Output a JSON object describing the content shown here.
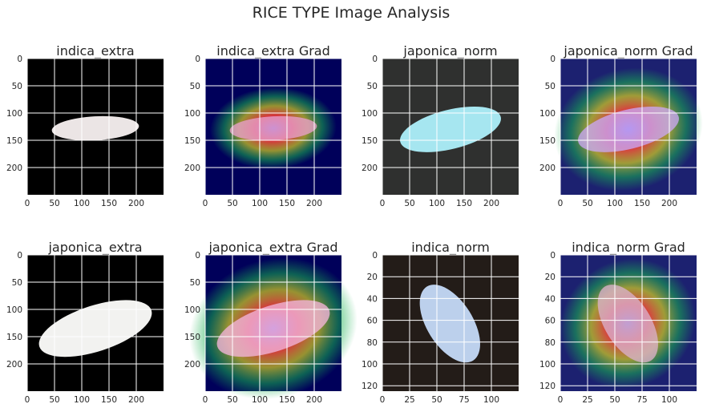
{
  "figure": {
    "title": "RICE TYPE Image Analysis"
  },
  "chart_data": [
    {
      "type": "image",
      "title": "indica_extra",
      "xlim": [
        0,
        250
      ],
      "ylim": [
        250,
        0
      ],
      "xticks": [
        0,
        50,
        100,
        150,
        200
      ],
      "yticks": [
        0,
        50,
        100,
        150,
        200
      ],
      "grid": true,
      "image": {
        "background": "#000000",
        "grain": "#ebe5e5",
        "heatmap": false
      }
    },
    {
      "type": "image",
      "title": "indica_extra Grad",
      "xlim": [
        0,
        250
      ],
      "ylim": [
        250,
        0
      ],
      "xticks": [
        0,
        50,
        100,
        150,
        200
      ],
      "yticks": [
        0,
        50,
        100,
        150,
        200
      ],
      "grid": true,
      "image": {
        "background": "#00005a",
        "grain": "#e6a0c8",
        "heatmap": true
      }
    },
    {
      "type": "image",
      "title": "japonica_norm",
      "xlim": [
        0,
        250
      ],
      "ylim": [
        250,
        0
      ],
      "xticks": [
        0,
        50,
        100,
        150,
        200
      ],
      "yticks": [
        0,
        50,
        100,
        150,
        200
      ],
      "grid": true,
      "image": {
        "background": "#2f302f",
        "grain": "#a6e6f0",
        "heatmap": false
      }
    },
    {
      "type": "image",
      "title": "japonica_norm Grad",
      "xlim": [
        0,
        250
      ],
      "ylim": [
        250,
        0
      ],
      "xticks": [
        0,
        50,
        100,
        150,
        200
      ],
      "yticks": [
        0,
        50,
        100,
        150,
        200
      ],
      "grid": true,
      "image": {
        "background": "#1c2170",
        "grain": "#c8a8f0",
        "heatmap": true
      }
    },
    {
      "type": "image",
      "title": "japonica_extra",
      "xlim": [
        0,
        250
      ],
      "ylim": [
        250,
        0
      ],
      "xticks": [
        0,
        50,
        100,
        150,
        200
      ],
      "yticks": [
        0,
        50,
        100,
        150,
        200
      ],
      "grid": true,
      "image": {
        "background": "#000000",
        "grain": "#f2f2f0",
        "heatmap": false
      }
    },
    {
      "type": "image",
      "title": "japonica_extra Grad",
      "xlim": [
        0,
        250
      ],
      "ylim": [
        250,
        0
      ],
      "xticks": [
        0,
        50,
        100,
        150,
        200
      ],
      "yticks": [
        0,
        50,
        100,
        150,
        200
      ],
      "grid": true,
      "image": {
        "background": "#00005a",
        "grain": "#f0b4d8",
        "heatmap": true
      }
    },
    {
      "type": "image",
      "title": "indica_norm",
      "xlim": [
        0,
        125
      ],
      "ylim": [
        125,
        0
      ],
      "xticks": [
        0,
        25,
        50,
        75,
        100
      ],
      "yticks": [
        0,
        20,
        40,
        60,
        80,
        100,
        120
      ],
      "grid": true,
      "image": {
        "background": "#231c18",
        "grain": "#bcd0ec",
        "heatmap": false
      }
    },
    {
      "type": "image",
      "title": "indica_norm Grad",
      "xlim": [
        0,
        125
      ],
      "ylim": [
        125,
        0
      ],
      "xticks": [
        0,
        25,
        50,
        75,
        100
      ],
      "yticks": [
        0,
        20,
        40,
        60,
        80,
        100,
        120
      ],
      "grid": true,
      "image": {
        "background": "#1c2170",
        "grain": "#d8b0c8",
        "heatmap": true
      }
    }
  ]
}
